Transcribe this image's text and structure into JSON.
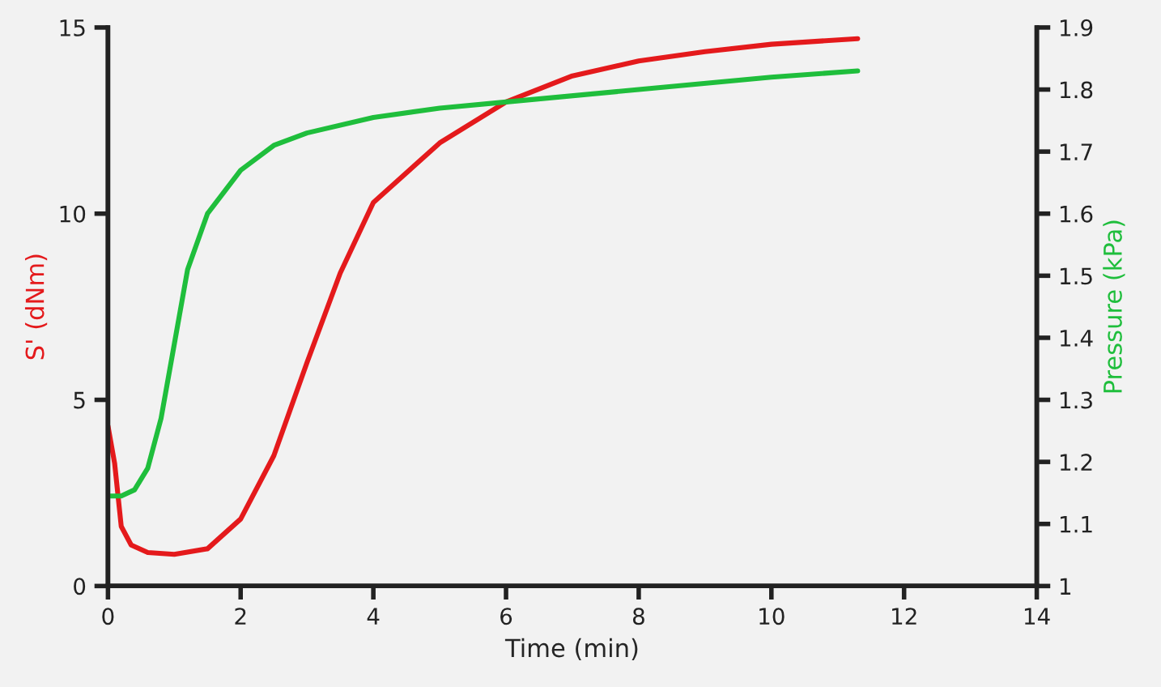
{
  "chart_data": {
    "type": "line",
    "xlabel": "Time (min)",
    "ylabel": "S' (dNm)",
    "y2label": "Pressure (kPa)",
    "xlim": [
      0,
      14
    ],
    "xticks": [
      0,
      2,
      4,
      6,
      8,
      10,
      12,
      14
    ],
    "ylim": [
      0,
      15
    ],
    "yticks": [
      0,
      5,
      10,
      15
    ],
    "y2lim": [
      1,
      1.9
    ],
    "y2ticks": [
      1,
      1.1,
      1.2,
      1.3,
      1.4,
      1.5,
      1.6,
      1.7,
      1.8,
      1.9
    ],
    "grid": false,
    "series": [
      {
        "color": "#e41a1c",
        "x": [
          0,
          0.1,
          0.2,
          0.35,
          0.6,
          1,
          1.5,
          2,
          2.5,
          3,
          3.5,
          4,
          5,
          6,
          7,
          8,
          9,
          10,
          11.3
        ],
        "values": [
          4.3,
          3.3,
          1.6,
          1.1,
          0.9,
          0.85,
          1.0,
          1.8,
          3.5,
          6.0,
          8.4,
          10.3,
          11.9,
          13.0,
          13.7,
          14.1,
          14.35,
          14.55,
          14.7
        ]
      },
      {
        "color": "#1fbe3c",
        "axis": "y2",
        "x": [
          0,
          0.2,
          0.4,
          0.6,
          0.8,
          1,
          1.2,
          1.5,
          2,
          2.5,
          3,
          4,
          5,
          6,
          8,
          10,
          11.3
        ],
        "values": [
          1.145,
          1.145,
          1.155,
          1.19,
          1.27,
          1.39,
          1.51,
          1.6,
          1.67,
          1.71,
          1.73,
          1.755,
          1.77,
          1.78,
          1.8,
          1.82,
          1.83
        ]
      }
    ]
  }
}
